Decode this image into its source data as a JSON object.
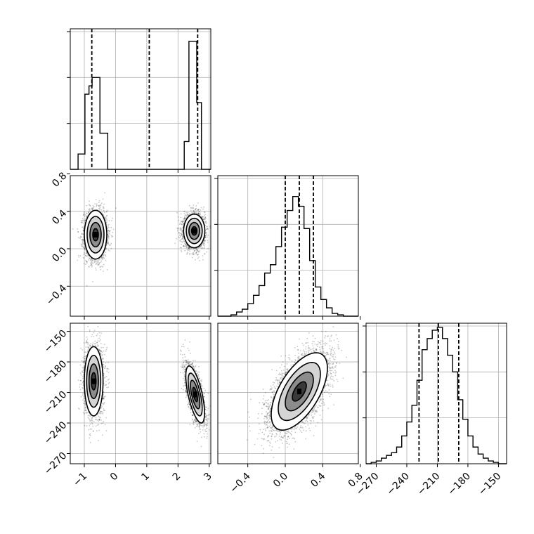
{
  "colors": {
    "contour_line": "#000000",
    "fill_dark": "#3a3a3a",
    "fill_mid": "#8c8c8c",
    "fill_light": "#d4d4d4",
    "grid": "#b0b0b0"
  },
  "chart_data": {
    "type": "corner",
    "title": "",
    "parameters": [
      "",
      "",
      ""
    ],
    "grid": true,
    "ranges": [
      [
        -1.45,
        3.05
      ],
      [
        -0.72,
        0.78
      ],
      [
        -280,
        -142
      ]
    ],
    "ticks": [
      [
        -1,
        0,
        1,
        2,
        3
      ],
      [
        -0.4,
        0.0,
        0.4,
        0.8
      ],
      [
        -270,
        -240,
        -210,
        -180,
        -150
      ]
    ],
    "tick_labels": [
      [
        "−1",
        "0",
        "1",
        "2",
        "3"
      ],
      [
        "−0.4",
        "0.0",
        "0.4",
        "0.8"
      ],
      [
        "−270",
        "−240",
        "−210",
        "−180",
        "−150"
      ]
    ],
    "histograms": [
      {
        "param": 0,
        "ymax": 1.0,
        "edges": [
          -1.45,
          -1.2,
          -0.98,
          -0.85,
          -0.75,
          -0.5,
          -0.25,
          -0.05,
          2.05,
          2.2,
          2.35,
          2.6,
          2.75,
          3.05
        ],
        "counts": [
          0.0,
          0.11,
          0.54,
          0.6,
          0.66,
          0.26,
          0.0,
          0.0,
          0.0,
          0.2,
          0.92,
          0.48,
          0.0
        ],
        "quantiles": [
          -0.76,
          1.08,
          2.63
        ]
      },
      {
        "param": 1,
        "ymax": 1.0,
        "edges": [
          -0.72,
          -0.64,
          -0.58,
          -0.52,
          -0.46,
          -0.4,
          -0.34,
          -0.28,
          -0.22,
          -0.16,
          -0.1,
          -0.04,
          0.02,
          0.08,
          0.14,
          0.2,
          0.26,
          0.32,
          0.38,
          0.44,
          0.5,
          0.56,
          0.62,
          0.78
        ],
        "counts": [
          0.0,
          0.0,
          0.01,
          0.03,
          0.05,
          0.09,
          0.15,
          0.22,
          0.31,
          0.37,
          0.5,
          0.64,
          0.76,
          0.86,
          0.79,
          0.63,
          0.4,
          0.21,
          0.12,
          0.06,
          0.02,
          0.01,
          0.0
        ],
        "quantiles": [
          0.0,
          0.15,
          0.3
        ]
      },
      {
        "param": 2,
        "ymax": 1.0,
        "edges": [
          -280,
          -275,
          -270,
          -265,
          -260,
          -255,
          -250,
          -245,
          -240,
          -235,
          -230,
          -225,
          -220,
          -215,
          -210,
          -205,
          -200,
          -195,
          -190,
          -185,
          -180,
          -175,
          -170,
          -165,
          -160,
          -155,
          -150,
          -142
        ],
        "counts": [
          0.0,
          0.01,
          0.02,
          0.04,
          0.06,
          0.08,
          0.12,
          0.2,
          0.3,
          0.42,
          0.6,
          0.82,
          0.9,
          0.96,
          0.98,
          0.9,
          0.78,
          0.66,
          0.46,
          0.32,
          0.2,
          0.12,
          0.07,
          0.04,
          0.02,
          0.01,
          0.0
        ],
        "quantiles": [
          -228,
          -209,
          -189
        ]
      }
    ],
    "panels_2d": [
      {
        "xparam": 0,
        "yparam": 1,
        "modes": [
          {
            "cx": -0.64,
            "cy": 0.15,
            "sx": 0.18,
            "sy": 0.13,
            "rho": 0.0,
            "n": 2600
          },
          {
            "cx": 2.52,
            "cy": 0.19,
            "sx": 0.17,
            "sy": 0.09,
            "rho": 0.0,
            "n": 2500
          }
        ]
      },
      {
        "xparam": 0,
        "yparam": 2,
        "modes": [
          {
            "cx": -0.7,
            "cy": -199,
            "sx": 0.15,
            "sy": 17,
            "rho": 0.0,
            "n": 2600
          },
          {
            "cx": 2.55,
            "cy": -212,
            "sx": 0.15,
            "sy": 14,
            "rho": -0.65,
            "n": 2500
          }
        ]
      },
      {
        "xparam": 1,
        "yparam": 2,
        "modes": [
          {
            "cx": 0.15,
            "cy": -209,
            "sx": 0.15,
            "sy": 19,
            "rho": 0.6,
            "n": 5000
          }
        ]
      }
    ],
    "contour_levels_sigma": [
      0.5,
      1.0,
      1.5,
      2.0
    ]
  }
}
